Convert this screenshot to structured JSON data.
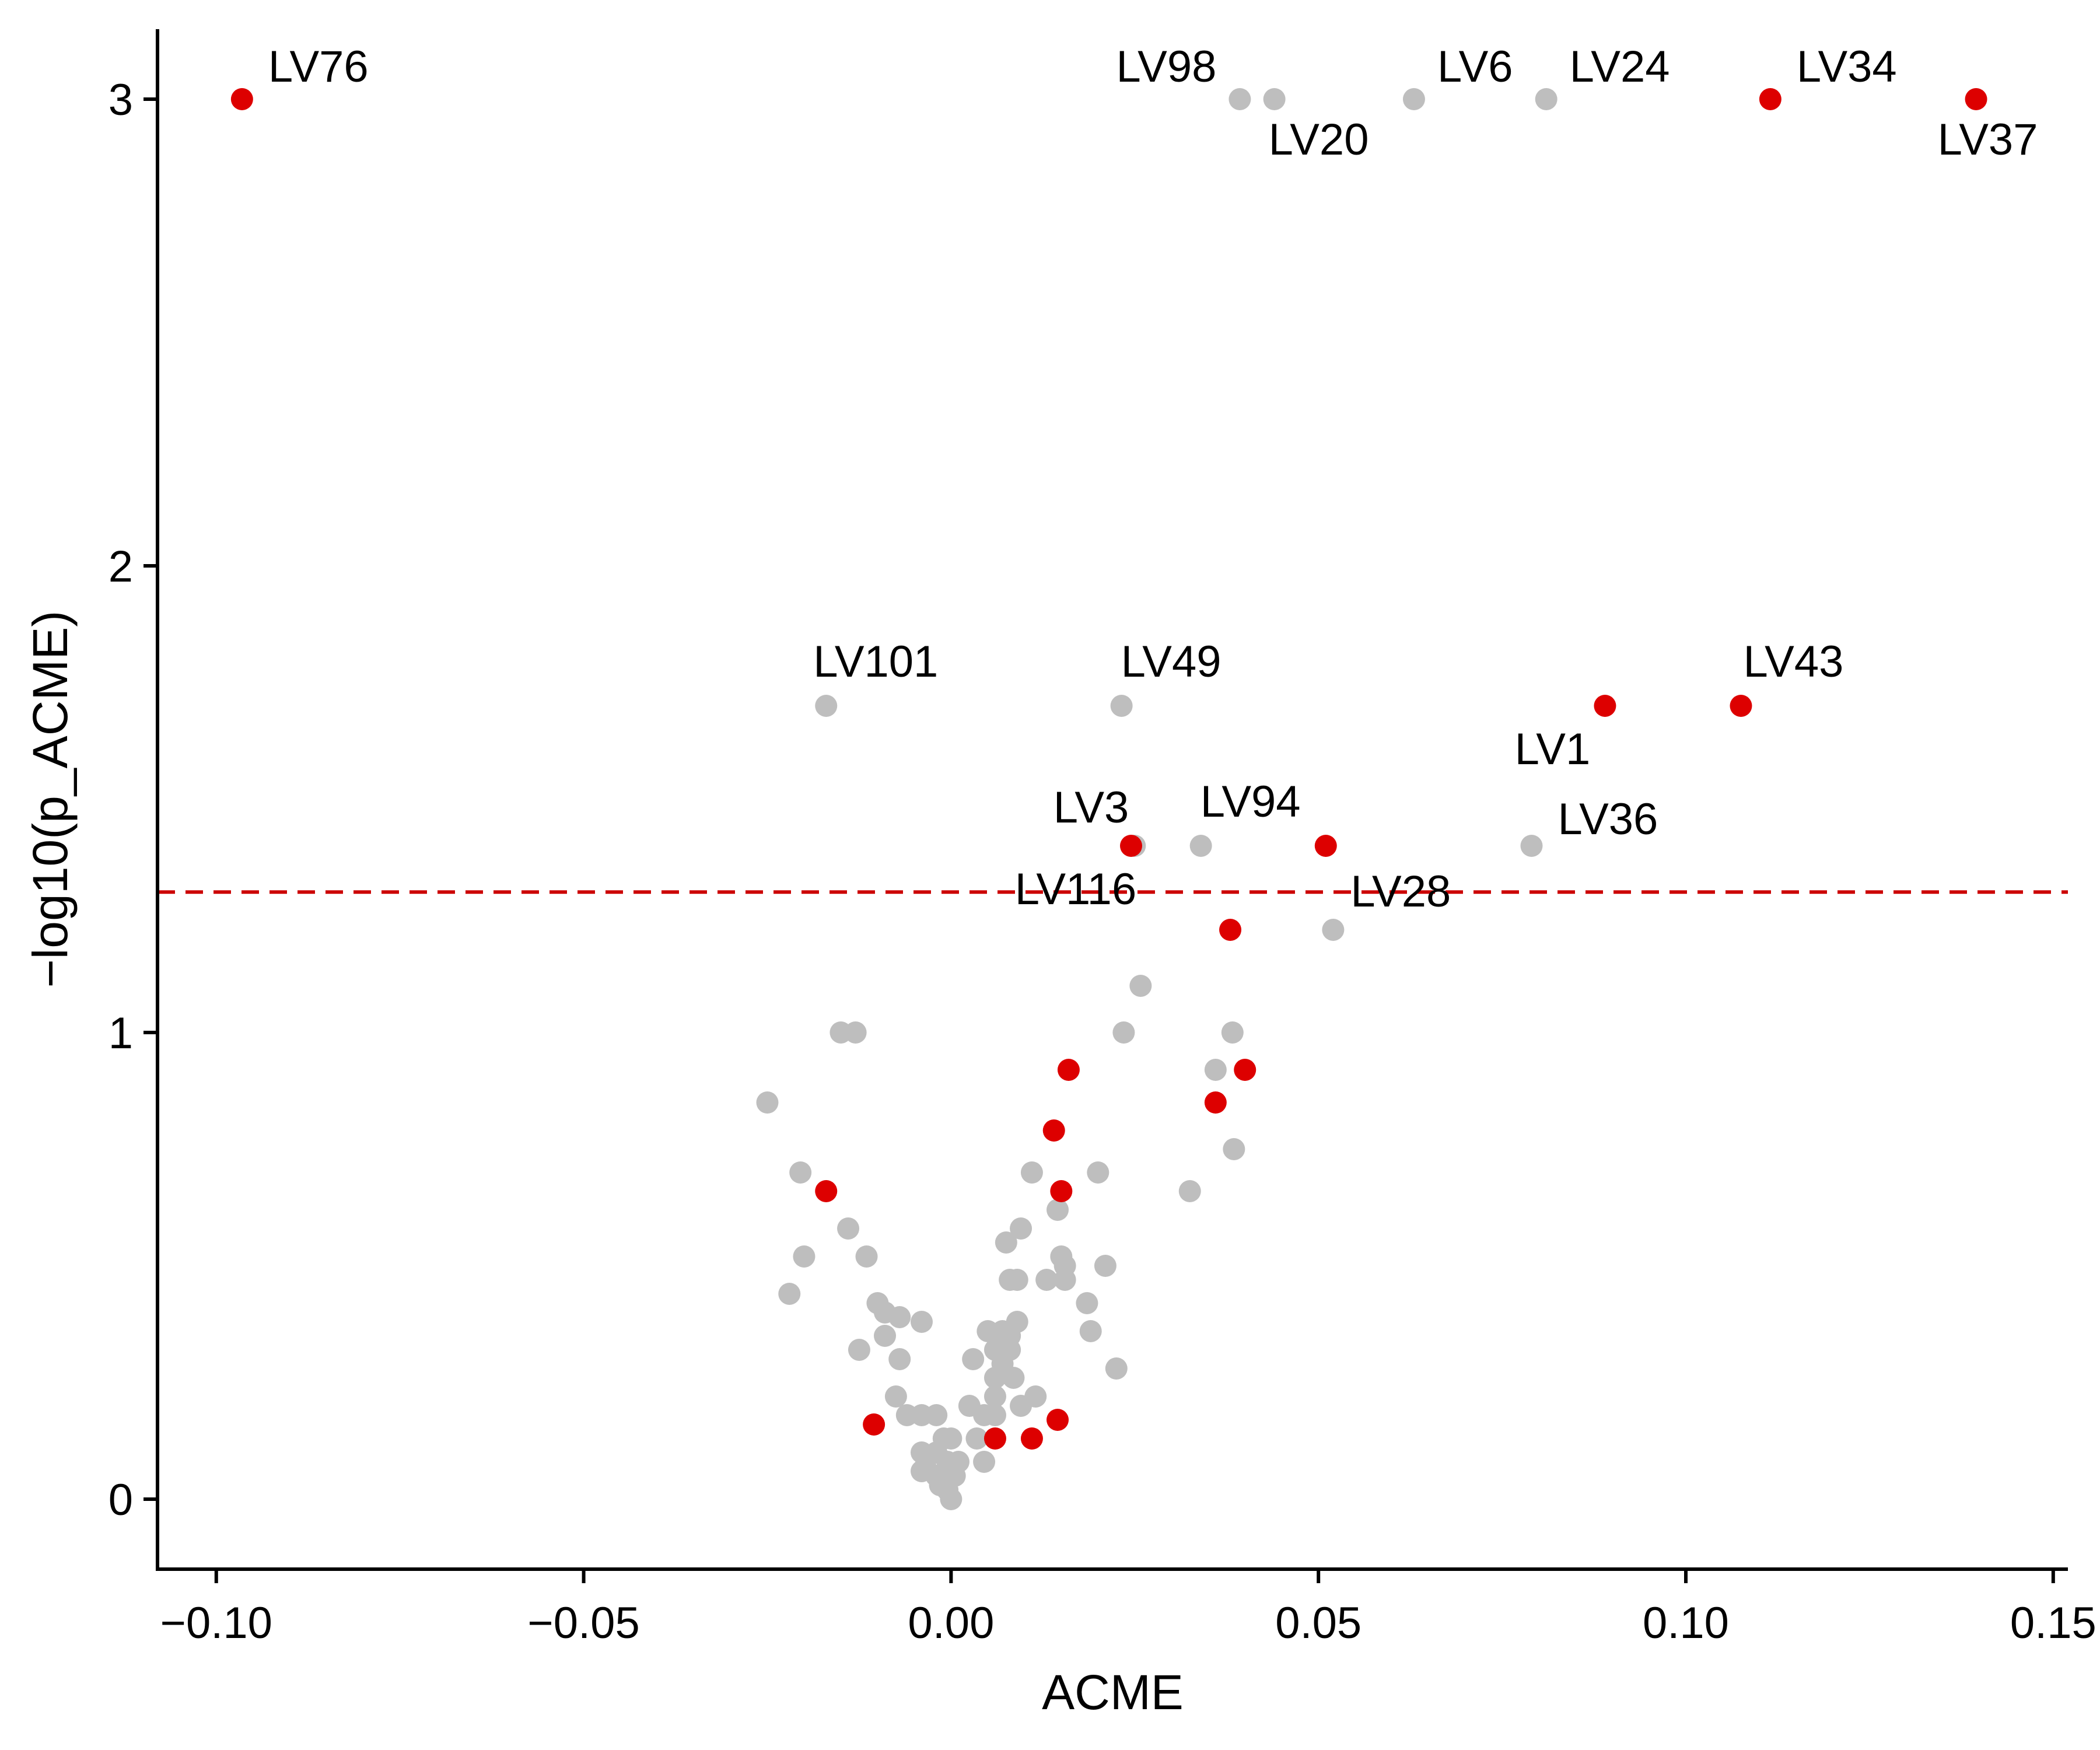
{
  "chart_data": {
    "type": "scatter",
    "title": "",
    "xlabel": "ACME",
    "ylabel": "−log10(p_ACME)",
    "xlim": [
      -0.108,
      0.152
    ],
    "ylim": [
      -0.15,
      3.15
    ],
    "x_ticks": [
      -0.1,
      -0.05,
      0.0,
      0.05,
      0.1,
      0.15
    ],
    "x_tick_labels": [
      "−0.10",
      "−0.05",
      "0.00",
      "0.05",
      "0.10",
      "0.15"
    ],
    "y_ticks": [
      0,
      1,
      2,
      3
    ],
    "y_tick_labels": [
      "0",
      "1",
      "2",
      "3"
    ],
    "threshold_line": {
      "y": 1.301,
      "style": "dashed",
      "color": "#cc0000"
    },
    "grid": false,
    "legend": "none",
    "colors": {
      "highlight": "#dd0000",
      "other": "#bebebe"
    },
    "series": [
      {
        "color": "#bebebe",
        "points": [
          {
            "x": 0.0393,
            "y": 3.0,
            "label": "LV98"
          },
          {
            "x": 0.044,
            "y": 3.0,
            "label": "LV20"
          },
          {
            "x": 0.063,
            "y": 3.0,
            "label": "LV6"
          },
          {
            "x": 0.081,
            "y": 3.0,
            "label": "LV24"
          },
          {
            "x": -0.017,
            "y": 1.7,
            "label": "LV101"
          },
          {
            "x": 0.0232,
            "y": 1.7,
            "label": "LV49"
          },
          {
            "x": 0.025,
            "y": 1.4,
            "label": "LV3"
          },
          {
            "x": 0.034,
            "y": 1.4,
            "label": "LV94"
          },
          {
            "x": 0.079,
            "y": 1.4,
            "label": "LV36"
          },
          {
            "x": 0.052,
            "y": 1.22,
            "label": "LV28"
          },
          {
            "x": 0.0258,
            "y": 1.1
          },
          {
            "x": 0.0235,
            "y": 1.0
          },
          {
            "x": 0.0383,
            "y": 1.0
          },
          {
            "x": -0.015,
            "y": 1.0
          },
          {
            "x": -0.013,
            "y": 1.0
          },
          {
            "x": 0.036,
            "y": 0.92
          },
          {
            "x": 0.0385,
            "y": 0.75
          },
          {
            "x": -0.025,
            "y": 0.85
          },
          {
            "x": 0.0325,
            "y": 0.66
          },
          {
            "x": -0.0205,
            "y": 0.7
          },
          {
            "x": 0.011,
            "y": 0.7
          },
          {
            "x": 0.02,
            "y": 0.7
          },
          {
            "x": 0.0145,
            "y": 0.62
          },
          {
            "x": -0.014,
            "y": 0.58
          },
          {
            "x": 0.0095,
            "y": 0.58
          },
          {
            "x": 0.0075,
            "y": 0.55
          },
          {
            "x": -0.02,
            "y": 0.52
          },
          {
            "x": -0.0115,
            "y": 0.52
          },
          {
            "x": 0.015,
            "y": 0.52
          },
          {
            "x": 0.0155,
            "y": 0.5
          },
          {
            "x": 0.021,
            "y": 0.5
          },
          {
            "x": -0.022,
            "y": 0.44
          },
          {
            "x": 0.008,
            "y": 0.47
          },
          {
            "x": 0.009,
            "y": 0.47
          },
          {
            "x": 0.013,
            "y": 0.47
          },
          {
            "x": 0.0155,
            "y": 0.47
          },
          {
            "x": -0.01,
            "y": 0.42
          },
          {
            "x": -0.009,
            "y": 0.4
          },
          {
            "x": -0.007,
            "y": 0.39
          },
          {
            "x": -0.004,
            "y": 0.38
          },
          {
            "x": 0.0185,
            "y": 0.42
          },
          {
            "x": 0.009,
            "y": 0.38
          },
          {
            "x": -0.009,
            "y": 0.35
          },
          {
            "x": 0.005,
            "y": 0.36
          },
          {
            "x": 0.007,
            "y": 0.36
          },
          {
            "x": 0.008,
            "y": 0.35
          },
          {
            "x": 0.019,
            "y": 0.36
          },
          {
            "x": -0.0125,
            "y": 0.32
          },
          {
            "x": 0.006,
            "y": 0.32
          },
          {
            "x": 0.008,
            "y": 0.32
          },
          {
            "x": -0.007,
            "y": 0.3
          },
          {
            "x": 0.003,
            "y": 0.3
          },
          {
            "x": 0.007,
            "y": 0.29
          },
          {
            "x": 0.0225,
            "y": 0.28
          },
          {
            "x": 0.006,
            "y": 0.26
          },
          {
            "x": 0.0085,
            "y": 0.26
          },
          {
            "x": 0.006,
            "y": 0.22
          },
          {
            "x": 0.0115,
            "y": 0.22
          },
          {
            "x": -0.0075,
            "y": 0.22
          },
          {
            "x": 0.0025,
            "y": 0.2
          },
          {
            "x": 0.0095,
            "y": 0.2
          },
          {
            "x": -0.006,
            "y": 0.18
          },
          {
            "x": -0.004,
            "y": 0.18
          },
          {
            "x": -0.002,
            "y": 0.18
          },
          {
            "x": 0.0045,
            "y": 0.18
          },
          {
            "x": 0.006,
            "y": 0.18
          },
          {
            "x": -0.001,
            "y": 0.13
          },
          {
            "x": 0.0,
            "y": 0.13
          },
          {
            "x": 0.0035,
            "y": 0.13
          },
          {
            "x": -0.004,
            "y": 0.1
          },
          {
            "x": -0.002,
            "y": 0.1
          },
          {
            "x": -0.0035,
            "y": 0.07
          },
          {
            "x": -0.0005,
            "y": 0.08
          },
          {
            "x": 0.001,
            "y": 0.08
          },
          {
            "x": 0.0045,
            "y": 0.08
          },
          {
            "x": -0.004,
            "y": 0.06
          },
          {
            "x": -0.002,
            "y": 0.05
          },
          {
            "x": 0.0005,
            "y": 0.05
          },
          {
            "x": -0.0015,
            "y": 0.03
          },
          {
            "x": -0.0005,
            "y": 0.02
          },
          {
            "x": 0.0,
            "y": 0.0
          }
        ]
      },
      {
        "color": "#dd0000",
        "points": [
          {
            "x": -0.0965,
            "y": 3.0,
            "label": "LV76"
          },
          {
            "x": 0.1115,
            "y": 3.0,
            "label": "LV34"
          },
          {
            "x": 0.1395,
            "y": 3.0,
            "label": "LV37"
          },
          {
            "x": 0.089,
            "y": 1.7,
            "label": "LV1"
          },
          {
            "x": 0.1075,
            "y": 1.7,
            "label": "LV43"
          },
          {
            "x": 0.0245,
            "y": 1.4,
            "label": "LV116"
          },
          {
            "x": 0.051,
            "y": 1.4
          },
          {
            "x": 0.038,
            "y": 1.22
          },
          {
            "x": 0.016,
            "y": 0.92
          },
          {
            "x": 0.04,
            "y": 0.92
          },
          {
            "x": 0.036,
            "y": 0.85
          },
          {
            "x": 0.014,
            "y": 0.79
          },
          {
            "x": 0.015,
            "y": 0.66
          },
          {
            "x": -0.017,
            "y": 0.66
          },
          {
            "x": -0.0105,
            "y": 0.16
          },
          {
            "x": 0.0145,
            "y": 0.17
          },
          {
            "x": 0.011,
            "y": 0.13
          },
          {
            "x": 0.006,
            "y": 0.13
          }
        ]
      }
    ]
  }
}
